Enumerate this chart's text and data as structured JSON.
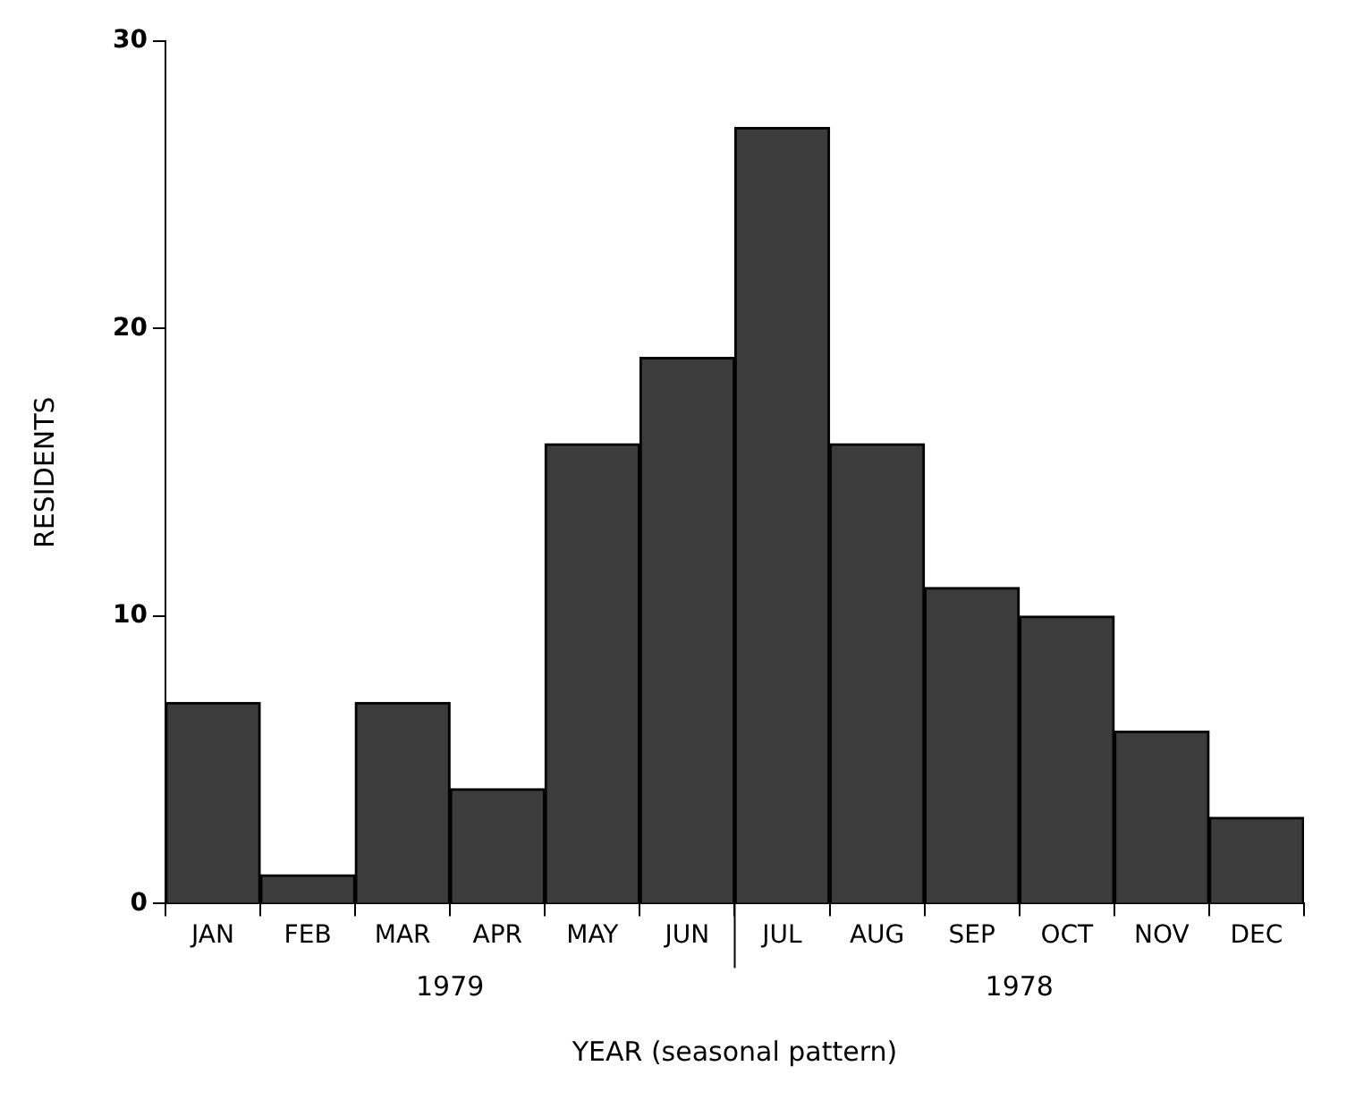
{
  "chart_data": {
    "type": "bar",
    "xlabel": "YEAR (seasonal pattern)",
    "ylabel": "RESIDENTS",
    "categories": [
      "JAN",
      "FEB",
      "MAR",
      "APR",
      "MAY",
      "JUN",
      "JUL",
      "AUG",
      "SEP",
      "OCT",
      "NOV",
      "DEC"
    ],
    "values": [
      7,
      1,
      7,
      4,
      16,
      19,
      27,
      16,
      11,
      10,
      6,
      3
    ],
    "color": "#3c3c3c",
    "ylim": [
      0,
      30
    ],
    "yticks": [
      0,
      10,
      20,
      30
    ],
    "grid": false,
    "legend": false,
    "annotations": [
      "1979",
      "1978"
    ]
  }
}
